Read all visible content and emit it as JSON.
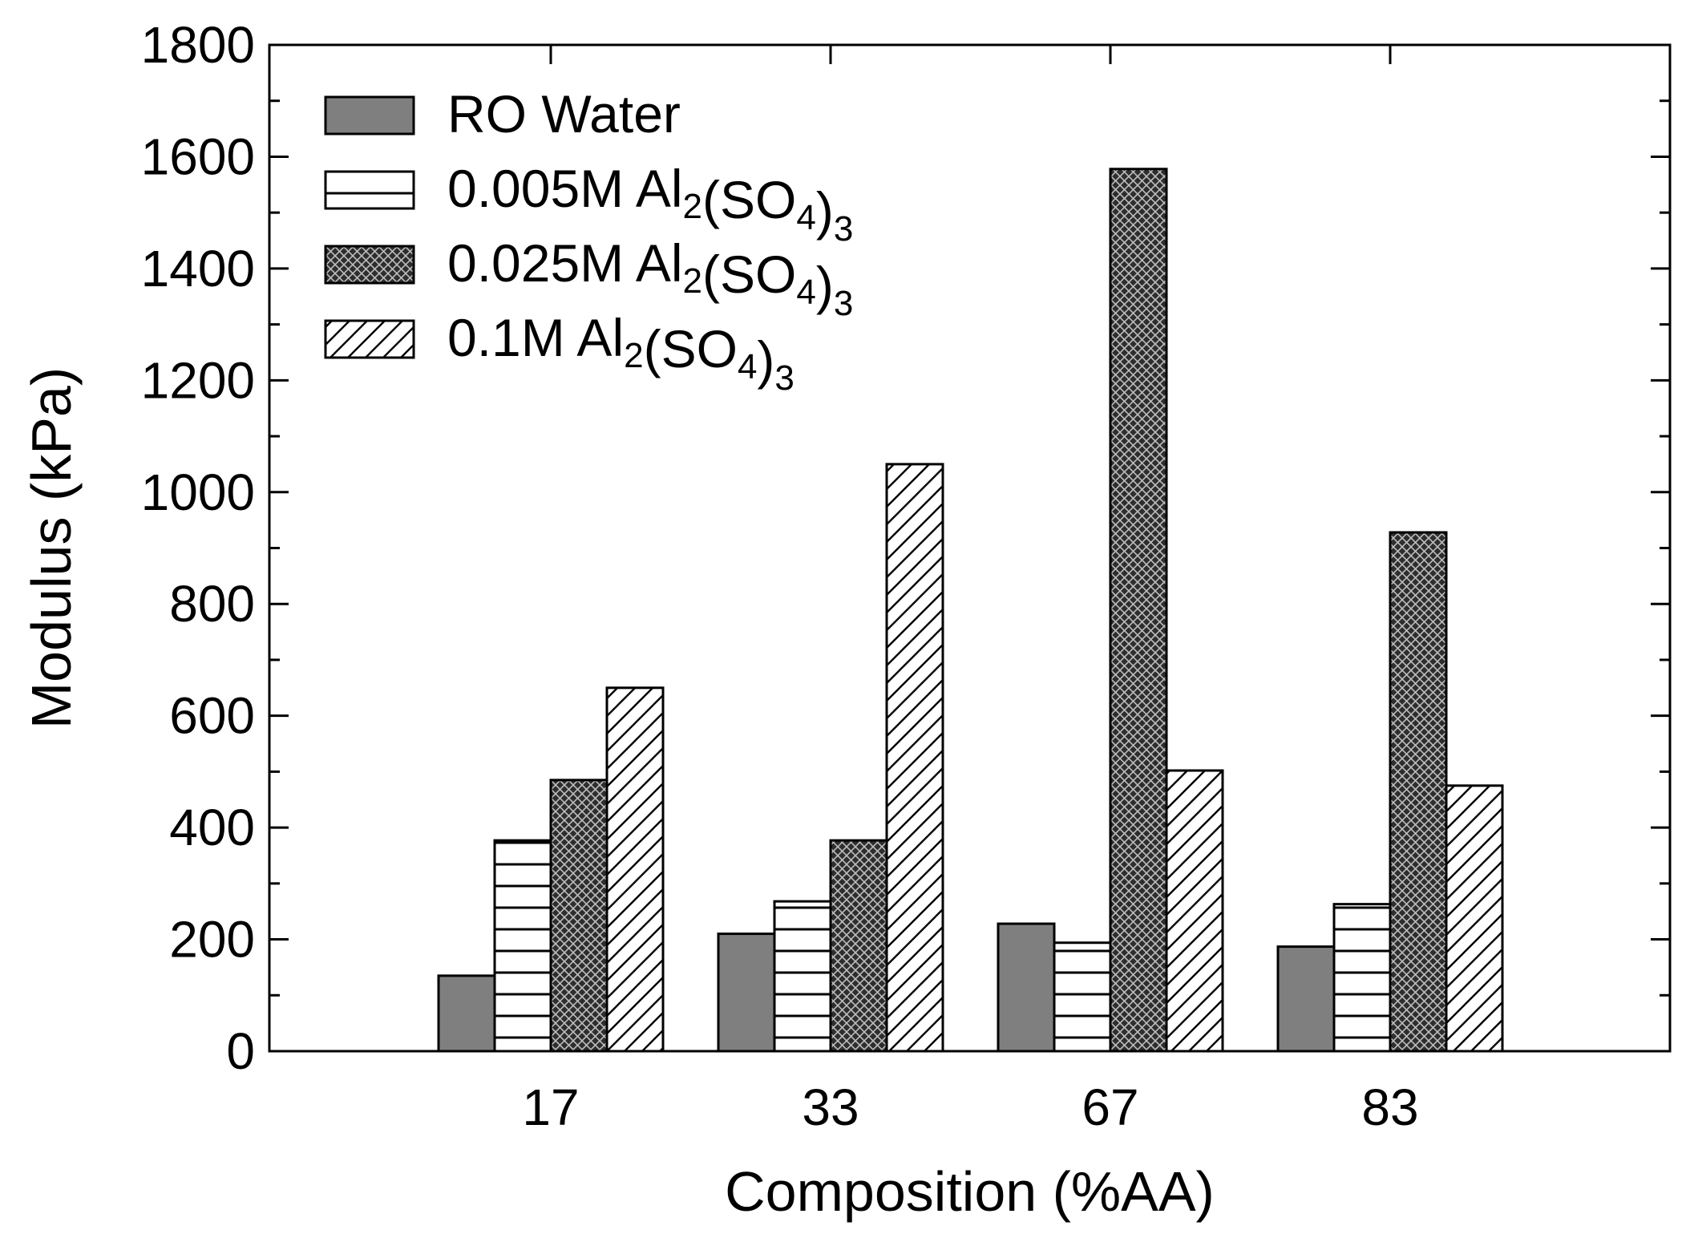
{
  "chart_data": {
    "type": "bar",
    "title": "",
    "xlabel": "Composition (%AA)",
    "ylabel": "Modulus (kPa)",
    "categories": [
      "17",
      "33",
      "67",
      "83"
    ],
    "ylim": [
      0,
      1800
    ],
    "yticks": [
      0,
      200,
      400,
      600,
      800,
      1000,
      1200,
      1400,
      1600,
      1800
    ],
    "legend_position": "top-left",
    "grid": false,
    "series": [
      {
        "name": "RO Water",
        "pattern": "solid-gray",
        "values": [
          135,
          210,
          228,
          187
        ]
      },
      {
        "name": "0.005M Al2(SO4)3",
        "pattern": "horizontal-lines",
        "values": [
          377,
          268,
          194,
          263
        ]
      },
      {
        "name": "0.025M Al2(SO4)3",
        "pattern": "crosshatch",
        "values": [
          485,
          377,
          1578,
          928
        ]
      },
      {
        "name": "0.1M Al2(SO4)3",
        "pattern": "diagonal-lines",
        "values": [
          650,
          1050,
          502,
          475
        ]
      }
    ],
    "legend_labels": [
      {
        "prefix": "RO Water",
        "sub1": "",
        "mid": "",
        "sub2": "",
        "suffix": ""
      },
      {
        "prefix": "0.005M Al",
        "sub1": "2",
        "mid": "(SO",
        "sub2": "4",
        "suffix": ")3"
      },
      {
        "prefix": "0.025M Al",
        "sub1": "2",
        "mid": "(SO",
        "sub2": "4",
        "suffix": ")3"
      },
      {
        "prefix": "0.1M Al",
        "sub1": "2",
        "mid": "(SO",
        "sub2": "4",
        "suffix": ")3"
      }
    ],
    "colors": {
      "solid_fill": "#7f7f7f",
      "crosshatch_fill": "#2e2e2e",
      "stroke": "#000000",
      "background": "#ffffff"
    }
  }
}
